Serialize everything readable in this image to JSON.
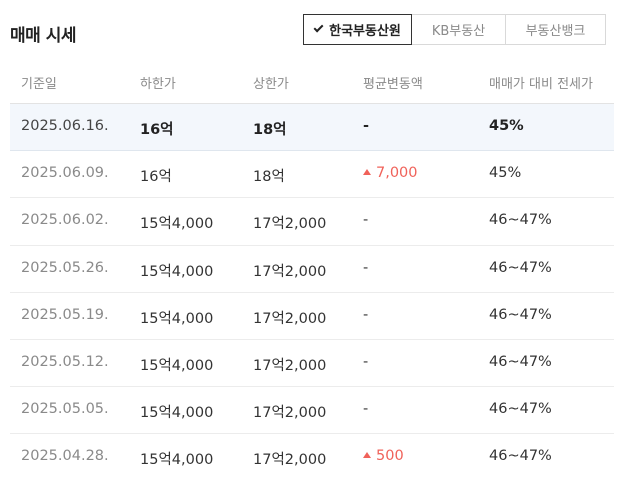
{
  "title": "매매 시세",
  "source_tabs": [
    {
      "label": "한국부동산원",
      "active": true
    },
    {
      "label": "KB부동산",
      "active": false
    },
    {
      "label": "부동산뱅크",
      "active": false
    }
  ],
  "columns": [
    "기준일",
    "하한가",
    "상한가",
    "평균변동액",
    "매매가 대비 전세가"
  ],
  "accent_colors": {
    "increase": "#f0625a",
    "highlight_row": "#f3f7fc"
  },
  "rows": [
    {
      "date": "2025.06.16.",
      "low": "16억",
      "high": "18억",
      "change": "-",
      "ratio": "45%"
    },
    {
      "date": "2025.06.09.",
      "low": "16억",
      "high": "18억",
      "change": "7,000",
      "ratio": "45%"
    },
    {
      "date": "2025.06.02.",
      "low": "15억4,000",
      "high": "17억2,000",
      "change": "-",
      "ratio": "46~47%"
    },
    {
      "date": "2025.05.26.",
      "low": "15억4,000",
      "high": "17억2,000",
      "change": "-",
      "ratio": "46~47%"
    },
    {
      "date": "2025.05.19.",
      "low": "15억4,000",
      "high": "17억2,000",
      "change": "-",
      "ratio": "46~47%"
    },
    {
      "date": "2025.05.12.",
      "low": "15억4,000",
      "high": "17억2,000",
      "change": "-",
      "ratio": "46~47%"
    },
    {
      "date": "2025.05.05.",
      "low": "15억4,000",
      "high": "17억2,000",
      "change": "-",
      "ratio": "46~47%"
    },
    {
      "date": "2025.04.28.",
      "low": "15억4,000",
      "high": "17억2,000",
      "change": "500",
      "ratio": "46~47%"
    }
  ]
}
